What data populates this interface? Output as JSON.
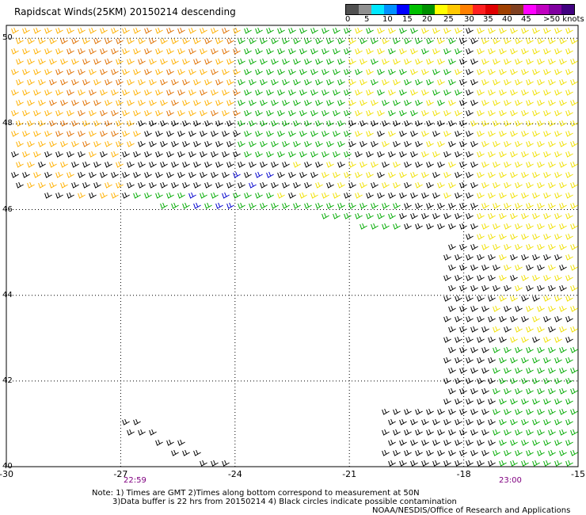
{
  "title": "Rapidscat Winds(25KM) 20150214 descending",
  "legend": {
    "labels": [
      "0",
      "5",
      "10",
      "15",
      "20",
      "25",
      "30",
      "35",
      "40",
      "45",
      ">50 knots"
    ],
    "colors": [
      "#505050",
      "#909090",
      "#00e8ff",
      "#0090ff",
      "#0000ff",
      "#00c000",
      "#009000",
      "#ffff00",
      "#ffc800",
      "#ff8000",
      "#ff2020",
      "#e00000",
      "#a04000",
      "#804020",
      "#ff00ff",
      "#c000c0",
      "#8000a0",
      "#400080"
    ]
  },
  "axes": {
    "lon_ticks": [
      "-30",
      "-27",
      "-24",
      "-21",
      "-18",
      "-15"
    ],
    "lat_ticks": [
      "50",
      "48",
      "46",
      "44",
      "42",
      "40"
    ],
    "lon_values": [
      -30,
      -27,
      -24,
      -21,
      -18,
      -15
    ],
    "lat_values": [
      50,
      48,
      46,
      44,
      42,
      40
    ]
  },
  "times": {
    "left": "22:59",
    "right": "23:00"
  },
  "notes": {
    "line1": "Note: 1) Times are GMT 2)Times along bottom correspond to measurement at 50N",
    "line2": "3)Data buffer is 22 hrs from 20150214 4) Black circles indicate possible contamination",
    "credit": "NOAA/NESDIS/Office of Research and Applications"
  },
  "wind_colors": {
    "calm": "#000000",
    "light": "#0000cc",
    "moderate": "#00aa00",
    "fresh": "#f0e000",
    "strong": "#ffb000",
    "gale": "#e07000"
  }
}
